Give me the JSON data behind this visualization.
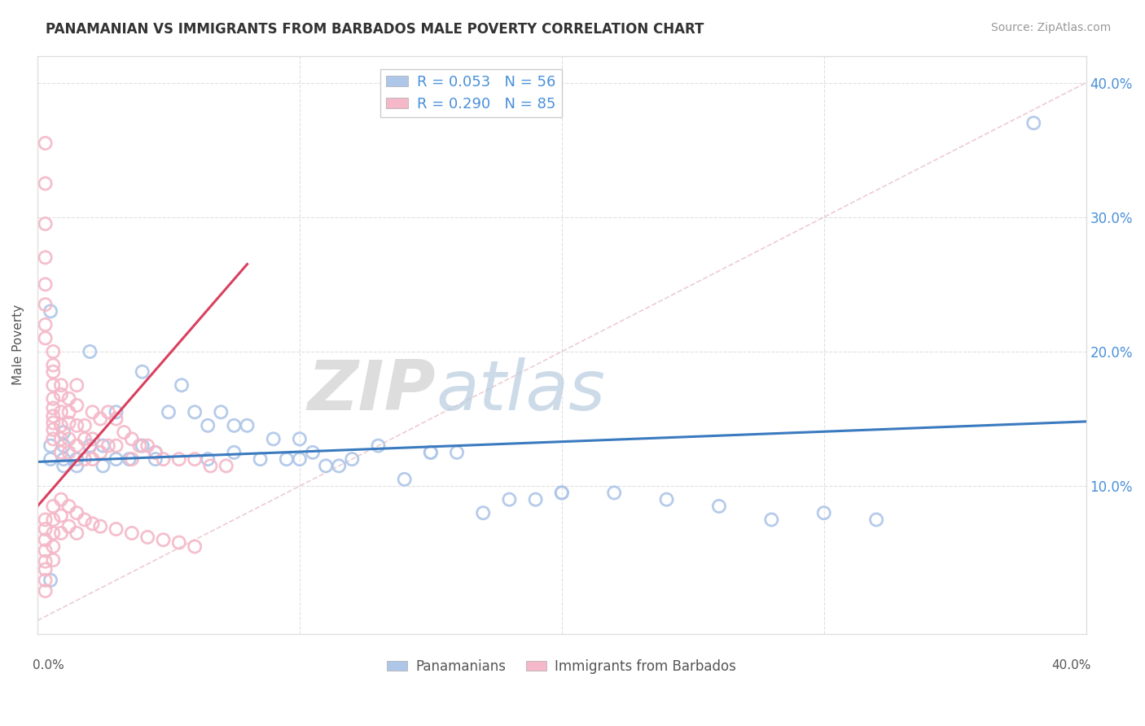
{
  "title": "PANAMANIAN VS IMMIGRANTS FROM BARBADOS MALE POVERTY CORRELATION CHART",
  "source": "Source: ZipAtlas.com",
  "ylabel": "Male Poverty",
  "legend_label1": "Panamanians",
  "legend_label2": "Immigrants from Barbados",
  "R1": 0.053,
  "N1": 56,
  "R2": 0.29,
  "N2": 85,
  "color1": "#aec6e8",
  "color2": "#f4b8c8",
  "line1_color": "#3a7abf",
  "line2_color": "#d94060",
  "diag_line_color": "#e8c0c8",
  "xlim": [
    0.0,
    0.4
  ],
  "ylim": [
    -0.01,
    0.42
  ],
  "pan_line_x": [
    0.0,
    0.4
  ],
  "pan_line_y": [
    0.118,
    0.148
  ],
  "bar_line_x": [
    0.0,
    0.08
  ],
  "bar_line_y": [
    0.085,
    0.265
  ],
  "panamanian_x": [
    0.005,
    0.005,
    0.005,
    0.01,
    0.01,
    0.01,
    0.01,
    0.015,
    0.015,
    0.02,
    0.02,
    0.025,
    0.025,
    0.03,
    0.03,
    0.035,
    0.04,
    0.04,
    0.045,
    0.045,
    0.05,
    0.055,
    0.06,
    0.065,
    0.07,
    0.075,
    0.08,
    0.09,
    0.1,
    0.1,
    0.11,
    0.12,
    0.13,
    0.14,
    0.15,
    0.16,
    0.17,
    0.18,
    0.19,
    0.2,
    0.22,
    0.24,
    0.26,
    0.28,
    0.3,
    0.32,
    0.065,
    0.075,
    0.085,
    0.095,
    0.105,
    0.115,
    0.38,
    0.005,
    0.15,
    0.2
  ],
  "panamanian_y": [
    0.13,
    0.12,
    0.03,
    0.14,
    0.13,
    0.12,
    0.115,
    0.12,
    0.115,
    0.2,
    0.13,
    0.13,
    0.115,
    0.155,
    0.12,
    0.12,
    0.13,
    0.185,
    0.125,
    0.12,
    0.155,
    0.175,
    0.155,
    0.145,
    0.155,
    0.145,
    0.145,
    0.135,
    0.135,
    0.12,
    0.115,
    0.12,
    0.13,
    0.105,
    0.125,
    0.125,
    0.08,
    0.09,
    0.09,
    0.095,
    0.095,
    0.09,
    0.085,
    0.075,
    0.08,
    0.075,
    0.12,
    0.125,
    0.12,
    0.12,
    0.125,
    0.115,
    0.37,
    0.23,
    0.125,
    0.095
  ],
  "barbados_x": [
    0.003,
    0.003,
    0.003,
    0.003,
    0.003,
    0.003,
    0.003,
    0.003,
    0.006,
    0.006,
    0.006,
    0.006,
    0.006,
    0.006,
    0.006,
    0.006,
    0.006,
    0.006,
    0.009,
    0.009,
    0.009,
    0.009,
    0.009,
    0.009,
    0.012,
    0.012,
    0.012,
    0.012,
    0.012,
    0.015,
    0.015,
    0.015,
    0.015,
    0.018,
    0.018,
    0.018,
    0.021,
    0.021,
    0.021,
    0.024,
    0.024,
    0.027,
    0.027,
    0.03,
    0.03,
    0.033,
    0.036,
    0.036,
    0.039,
    0.042,
    0.045,
    0.048,
    0.054,
    0.06,
    0.066,
    0.072,
    0.003,
    0.003,
    0.003,
    0.003,
    0.003,
    0.003,
    0.003,
    0.003,
    0.006,
    0.006,
    0.006,
    0.006,
    0.006,
    0.009,
    0.009,
    0.009,
    0.012,
    0.012,
    0.015,
    0.015,
    0.018,
    0.021,
    0.024,
    0.03,
    0.036,
    0.042,
    0.048,
    0.054,
    0.06
  ],
  "barbados_y": [
    0.355,
    0.325,
    0.295,
    0.27,
    0.25,
    0.235,
    0.22,
    0.21,
    0.2,
    0.19,
    0.185,
    0.175,
    0.165,
    0.158,
    0.152,
    0.147,
    0.142,
    0.135,
    0.175,
    0.168,
    0.155,
    0.145,
    0.135,
    0.125,
    0.165,
    0.155,
    0.147,
    0.135,
    0.125,
    0.175,
    0.16,
    0.145,
    0.13,
    0.145,
    0.135,
    0.12,
    0.155,
    0.135,
    0.12,
    0.15,
    0.125,
    0.155,
    0.13,
    0.15,
    0.13,
    0.14,
    0.135,
    0.12,
    0.13,
    0.13,
    0.125,
    0.12,
    0.12,
    0.12,
    0.115,
    0.115,
    0.075,
    0.068,
    0.06,
    0.052,
    0.044,
    0.038,
    0.03,
    0.022,
    0.085,
    0.075,
    0.065,
    0.055,
    0.045,
    0.09,
    0.078,
    0.065,
    0.085,
    0.07,
    0.08,
    0.065,
    0.075,
    0.072,
    0.07,
    0.068,
    0.065,
    0.062,
    0.06,
    0.058,
    0.055
  ]
}
